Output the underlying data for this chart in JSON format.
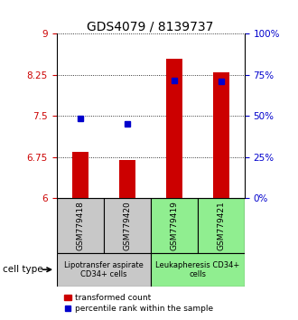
{
  "title": "GDS4079 / 8139737",
  "samples": [
    "GSM779418",
    "GSM779420",
    "GSM779419",
    "GSM779421"
  ],
  "red_values": [
    6.85,
    6.7,
    8.55,
    8.3
  ],
  "blue_values": [
    7.46,
    7.35,
    8.15,
    8.13
  ],
  "ylim": [
    6.0,
    9.0
  ],
  "yticks_left": [
    6,
    6.75,
    7.5,
    8.25,
    9
  ],
  "yticks_right": [
    0,
    25,
    50,
    75,
    100
  ],
  "bar_width": 0.35,
  "bar_bottom": 6.0,
  "red_color": "#cc0000",
  "blue_color": "#0000cc",
  "group1_color": "#c8c8c8",
  "group2_color": "#90ee90",
  "group1_label": "Lipotransfer aspirate\nCD34+ cells",
  "group2_label": "Leukapheresis CD34+\ncells",
  "group1_samples": [
    0,
    1
  ],
  "group2_samples": [
    2,
    3
  ],
  "cell_type_label": "cell type",
  "legend_red": "transformed count",
  "legend_blue": "percentile rank within the sample",
  "title_fontsize": 10,
  "tick_fontsize": 7.5,
  "sample_fontsize": 6.5,
  "group_fontsize": 6.0,
  "legend_fontsize": 6.5
}
